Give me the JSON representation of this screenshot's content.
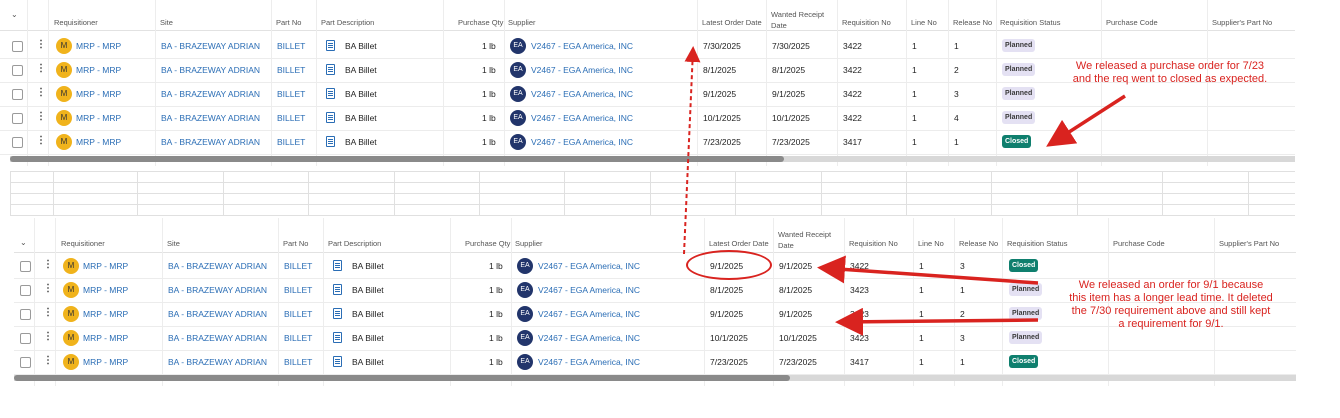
{
  "columns": {
    "requisitioner": "Requisitioner",
    "site": "Site",
    "part_no": "Part No",
    "part_description": "Part Description",
    "purchase_qty": "Purchase Qty",
    "supplier": "Supplier",
    "latest_order_date": "Latest Order Date",
    "wanted_receipt_line1": "Wanted Receipt",
    "wanted_receipt_line2": "Date",
    "requisition_no": "Requisition No",
    "line_no": "Line No",
    "release_no": "Release No",
    "requisition_status": "Requisition Status",
    "purchase_code": "Purchase Code",
    "suppliers_part_no": "Supplier's Part No"
  },
  "avatar_m": "M",
  "avatar_ea": "EA",
  "kebab": "⋮",
  "top_grid": {
    "rows": [
      {
        "requisitioner": "MRP - MRP",
        "site": "BA - BRAZEWAY ADRIAN",
        "part_no": "BILLET",
        "part_description": "BA Billet",
        "qty": "1 lb",
        "supplier": "V2467 - EGA America, INC",
        "latest_order_date": "7/30/2025",
        "wanted_receipt_date": "7/30/2025",
        "requisition_no": "3422",
        "line_no": "1",
        "release_no": "1",
        "status": "Planned"
      },
      {
        "requisitioner": "MRP - MRP",
        "site": "BA - BRAZEWAY ADRIAN",
        "part_no": "BILLET",
        "part_description": "BA Billet",
        "qty": "1 lb",
        "supplier": "V2467 - EGA America, INC",
        "latest_order_date": "8/1/2025",
        "wanted_receipt_date": "8/1/2025",
        "requisition_no": "3422",
        "line_no": "1",
        "release_no": "2",
        "status": "Planned"
      },
      {
        "requisitioner": "MRP - MRP",
        "site": "BA - BRAZEWAY ADRIAN",
        "part_no": "BILLET",
        "part_description": "BA Billet",
        "qty": "1 lb",
        "supplier": "V2467 - EGA America, INC",
        "latest_order_date": "9/1/2025",
        "wanted_receipt_date": "9/1/2025",
        "requisition_no": "3422",
        "line_no": "1",
        "release_no": "3",
        "status": "Planned"
      },
      {
        "requisitioner": "MRP - MRP",
        "site": "BA - BRAZEWAY ADRIAN",
        "part_no": "BILLET",
        "part_description": "BA Billet",
        "qty": "1 lb",
        "supplier": "V2467 - EGA America, INC",
        "latest_order_date": "10/1/2025",
        "wanted_receipt_date": "10/1/2025",
        "requisition_no": "3422",
        "line_no": "1",
        "release_no": "4",
        "status": "Planned"
      },
      {
        "requisitioner": "MRP - MRP",
        "site": "BA - BRAZEWAY ADRIAN",
        "part_no": "BILLET",
        "part_description": "BA Billet",
        "qty": "1 lb",
        "supplier": "V2467 - EGA America, INC",
        "latest_order_date": "7/23/2025",
        "wanted_receipt_date": "7/23/2025",
        "requisition_no": "3417",
        "line_no": "1",
        "release_no": "1",
        "status": "Closed"
      }
    ]
  },
  "bottom_grid": {
    "rows": [
      {
        "requisitioner": "MRP - MRP",
        "site": "BA - BRAZEWAY ADRIAN",
        "part_no": "BILLET",
        "part_description": "BA Billet",
        "qty": "1 lb",
        "supplier": "V2467 - EGA America, INC",
        "latest_order_date": "9/1/2025",
        "wanted_receipt_date": "9/1/2025",
        "requisition_no": "3422",
        "line_no": "1",
        "release_no": "3",
        "status": "Closed"
      },
      {
        "requisitioner": "MRP - MRP",
        "site": "BA - BRAZEWAY ADRIAN",
        "part_no": "BILLET",
        "part_description": "BA Billet",
        "qty": "1 lb",
        "supplier": "V2467 - EGA America, INC",
        "latest_order_date": "8/1/2025",
        "wanted_receipt_date": "8/1/2025",
        "requisition_no": "3423",
        "line_no": "1",
        "release_no": "1",
        "status": "Planned"
      },
      {
        "requisitioner": "MRP - MRP",
        "site": "BA - BRAZEWAY ADRIAN",
        "part_no": "BILLET",
        "part_description": "BA Billet",
        "qty": "1 lb",
        "supplier": "V2467 - EGA America, INC",
        "latest_order_date": "9/1/2025",
        "wanted_receipt_date": "9/1/2025",
        "requisition_no": "3423",
        "line_no": "1",
        "release_no": "2",
        "status": "Planned"
      },
      {
        "requisitioner": "MRP - MRP",
        "site": "BA - BRAZEWAY ADRIAN",
        "part_no": "BILLET",
        "part_description": "BA Billet",
        "qty": "1 lb",
        "supplier": "V2467 - EGA America, INC",
        "latest_order_date": "10/1/2025",
        "wanted_receipt_date": "10/1/2025",
        "requisition_no": "3423",
        "line_no": "1",
        "release_no": "3",
        "status": "Planned"
      },
      {
        "requisitioner": "MRP - MRP",
        "site": "BA - BRAZEWAY ADRIAN",
        "part_no": "BILLET",
        "part_description": "BA Billet",
        "qty": "1 lb",
        "supplier": "V2467 - EGA America, INC",
        "latest_order_date": "7/23/2025",
        "wanted_receipt_date": "7/23/2025",
        "requisition_no": "3417",
        "line_no": "1",
        "release_no": "1",
        "status": "Closed"
      }
    ]
  },
  "annotations": {
    "top_note_line1": "We released a purchase order for 7/23",
    "top_note_line2": "and the req went to closed as expected.",
    "bottom_note_line1": "We released an order for 9/1 because",
    "bottom_note_line2": "this item has a longer lead time. It deleted",
    "bottom_note_line3": "the 7/30 requirement above and still kept",
    "bottom_note_line4": "a requirement for 9/1."
  },
  "colors": {
    "link": "#2a6db5",
    "planned_badge": "#e4e1f3",
    "closed_badge": "#0f7f6e",
    "annotation_red": "#d9231f",
    "avatar_m": "#f0b31c",
    "avatar_ea": "#22356b"
  },
  "icons": [
    "checkbox-icon",
    "kebab-menu-icon",
    "avatar-icon",
    "document-icon",
    "supplier-avatar-icon",
    "arrow-icon"
  ]
}
